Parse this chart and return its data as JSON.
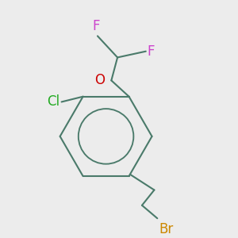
{
  "background_color": "#ececec",
  "bond_color": "#4a7a6a",
  "bond_width": 1.5,
  "figsize": [
    3.0,
    3.0
  ],
  "dpi": 100,
  "atoms": {
    "Cl": {
      "color": "#22aa22",
      "fontsize": 12
    },
    "O": {
      "color": "#cc0000",
      "fontsize": 12
    },
    "F1": {
      "color": "#cc44cc",
      "fontsize": 12
    },
    "F2": {
      "color": "#cc44cc",
      "fontsize": 12
    },
    "Br": {
      "color": "#cc8800",
      "fontsize": 12
    }
  }
}
